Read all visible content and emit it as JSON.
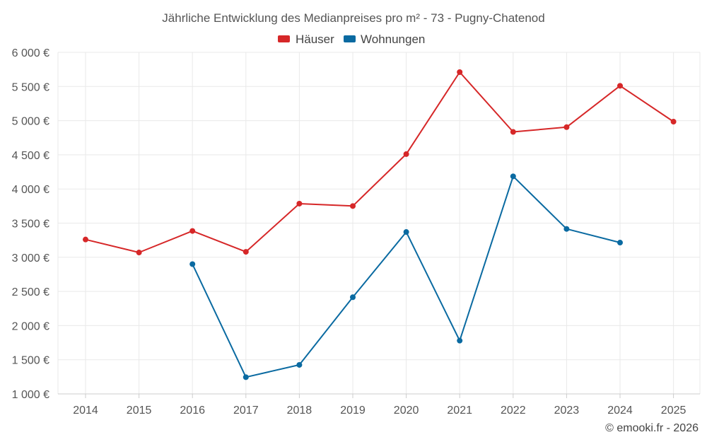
{
  "chart_data": {
    "type": "line",
    "title": "Jährliche Entwicklung des Medianpreises pro m² - 73 - Pugny-Chatenod",
    "xlabel": "",
    "ylabel": "",
    "categories": [
      "2014",
      "2015",
      "2016",
      "2017",
      "2018",
      "2019",
      "2020",
      "2021",
      "2022",
      "2023",
      "2024",
      "2025"
    ],
    "ylim": [
      1000,
      6000
    ],
    "yticks": [
      1000,
      1500,
      2000,
      2500,
      3000,
      3500,
      4000,
      4500,
      5000,
      5500,
      6000
    ],
    "ytick_labels": [
      "1 000 €",
      "1 500 €",
      "2 000 €",
      "2 500 €",
      "3 000 €",
      "3 500 €",
      "4 000 €",
      "4 500 €",
      "5 000 €",
      "5 500 €",
      "6 000 €"
    ],
    "grid": true,
    "legend_position": "top-center",
    "series": [
      {
        "name": "Häuser",
        "color": "#d62728",
        "values": [
          3260,
          3070,
          3385,
          3080,
          3785,
          3750,
          4510,
          5710,
          4835,
          4905,
          5510,
          4985
        ]
      },
      {
        "name": "Wohnungen",
        "color": "#0a6aa1",
        "values": [
          null,
          null,
          2900,
          1245,
          1425,
          2415,
          3370,
          1780,
          4185,
          3415,
          3215,
          null
        ]
      }
    ]
  },
  "credit": "© emooki.fr - 2026"
}
